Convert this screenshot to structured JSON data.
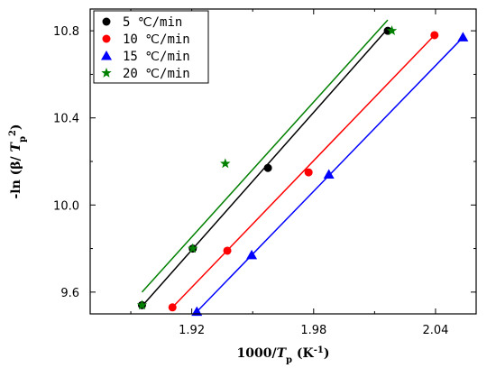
{
  "chart_data": {
    "type": "scatter",
    "xlabel": {
      "main": "1000/",
      "var": "T",
      "sub": "p",
      "unit_open": " (K",
      "exp": "-1",
      "unit_close": ")"
    },
    "ylabel": {
      "main": "-ln (β/ ",
      "var": "T",
      "sub": "p",
      "exp": "2",
      "close": ")"
    },
    "xlim": [
      1.87,
      2.06
    ],
    "ylim": [
      9.5,
      10.9
    ],
    "x_ticks": [
      1.92,
      1.98,
      2.04
    ],
    "x_tick_labels": [
      "1.92",
      "1.98",
      "2.04"
    ],
    "y_ticks": [
      9.6,
      10.0,
      10.4,
      10.8
    ],
    "y_tick_labels": [
      "9.6",
      "10.0",
      "10.4",
      "10.8"
    ],
    "legend_position": "top-left",
    "grid": false,
    "series": [
      {
        "name": "5 ℃/min",
        "color": "#000000",
        "marker": "circle",
        "points": [
          [
            1.8955,
            9.54
          ],
          [
            1.9205,
            9.8
          ],
          [
            1.9575,
            10.17
          ],
          [
            2.0165,
            10.8
          ]
        ],
        "fit": [
          [
            1.8955,
            9.535
          ],
          [
            2.0165,
            10.81
          ]
        ]
      },
      {
        "name": "10 ℃/min",
        "color": "#ff0000",
        "marker": "circle",
        "points": [
          [
            1.9105,
            9.53
          ],
          [
            1.9375,
            9.79
          ],
          [
            1.9775,
            10.15
          ],
          [
            2.0395,
            10.78
          ]
        ],
        "fit": [
          [
            1.9105,
            9.53
          ],
          [
            2.0395,
            10.78
          ]
        ]
      },
      {
        "name": "15 ℃/min",
        "color": "#0000ff",
        "marker": "triangle",
        "points": [
          [
            1.9225,
            9.51
          ],
          [
            1.9495,
            9.77
          ],
          [
            1.9875,
            10.14
          ],
          [
            2.0535,
            10.77
          ]
        ],
        "fit": [
          [
            1.9225,
            9.51
          ],
          [
            2.0535,
            10.77
          ]
        ]
      },
      {
        "name": "20 ℃/min",
        "color": "#008000",
        "marker": "star",
        "points": [
          [
            1.8955,
            9.54
          ],
          [
            1.9205,
            9.8
          ],
          [
            1.9365,
            10.19
          ],
          [
            2.0185,
            10.8
          ]
        ],
        "fit": [
          [
            1.8955,
            9.6
          ],
          [
            2.0165,
            10.85
          ]
        ]
      }
    ]
  }
}
